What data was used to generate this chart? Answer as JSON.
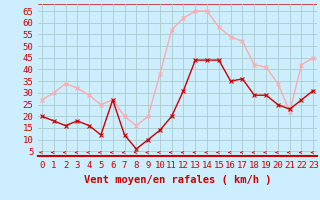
{
  "hours": [
    0,
    1,
    2,
    3,
    4,
    5,
    6,
    7,
    8,
    9,
    10,
    11,
    12,
    13,
    14,
    15,
    16,
    17,
    18,
    19,
    20,
    21,
    22,
    23
  ],
  "vent_moyen": [
    20,
    18,
    16,
    18,
    16,
    12,
    27,
    12,
    6,
    10,
    14,
    20,
    31,
    44,
    44,
    44,
    35,
    36,
    29,
    29,
    25,
    23,
    27,
    31
  ],
  "rafales": [
    27,
    30,
    34,
    32,
    29,
    25,
    27,
    20,
    16,
    20,
    38,
    57,
    62,
    65,
    65,
    58,
    54,
    52,
    42,
    41,
    34,
    22,
    42,
    45
  ],
  "color_moyen": "#cc0000",
  "color_rafales": "#ffaaaa",
  "color_arrow": "#cc0000",
  "bg_color": "#cceeff",
  "grid_color": "#aacccc",
  "xlabel": "Vent moyen/en rafales ( km/h )",
  "yticks": [
    5,
    10,
    15,
    20,
    25,
    30,
    35,
    40,
    45,
    50,
    55,
    60,
    65
  ],
  "ylim": [
    3,
    68
  ],
  "xlim": [
    -0.3,
    23.3
  ],
  "tick_fontsize": 6.5,
  "xlabel_fontsize": 7.5,
  "marker_size": 2.5,
  "line_width": 1.0
}
